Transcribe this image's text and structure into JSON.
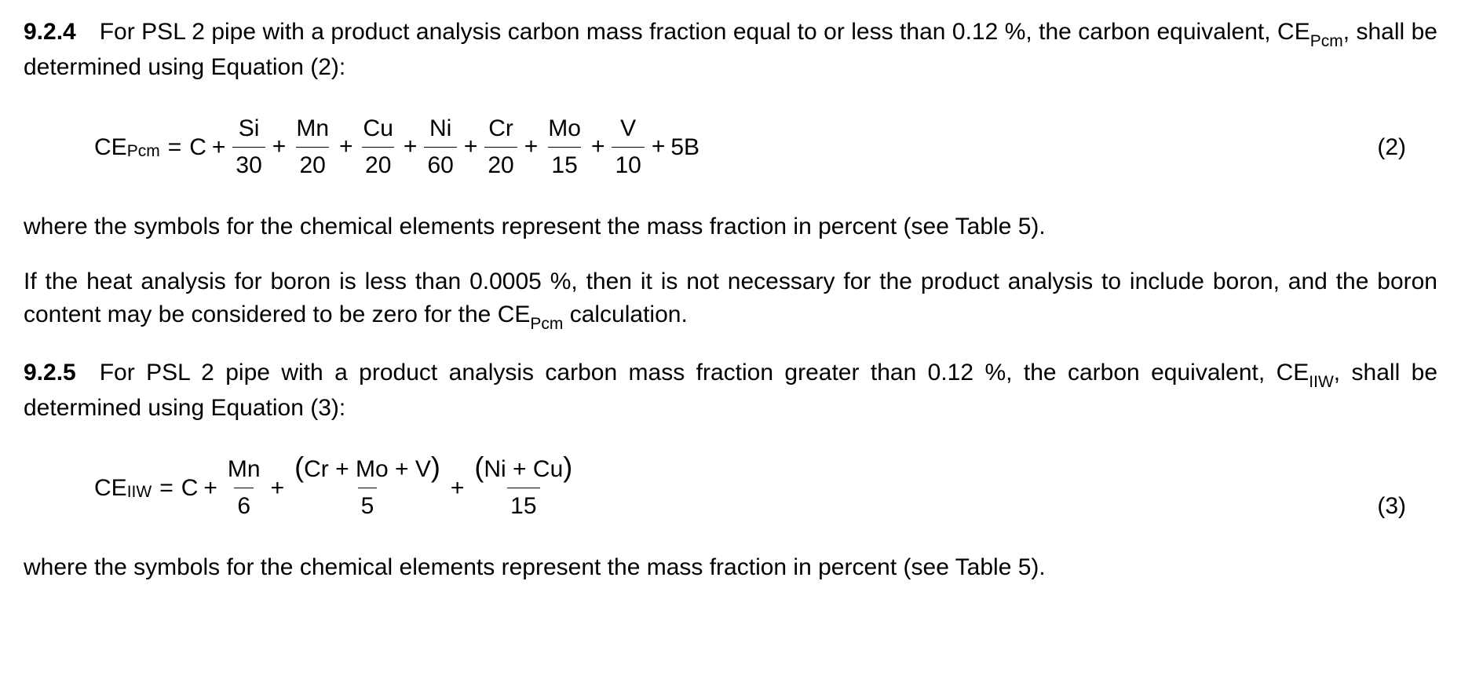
{
  "clause924": {
    "number": "9.2.4",
    "text_before_ce": "For PSL 2 pipe with a product analysis carbon mass fraction equal to or less than 0.12 %, the carbon equivalent, CE",
    "ce_sub": "Pcm",
    "text_after_ce": ", shall be determined using Equation (2):"
  },
  "eq2": {
    "lhs_main": "CE",
    "lhs_sub": "Pcm",
    "eq": "=",
    "first_term": "C",
    "plus": "+",
    "terms": [
      {
        "num": "Si",
        "den": "30"
      },
      {
        "num": "Mn",
        "den": "20"
      },
      {
        "num": "Cu",
        "den": "20"
      },
      {
        "num": "Ni",
        "den": "60"
      },
      {
        "num": "Cr",
        "den": "20"
      },
      {
        "num": "Mo",
        "den": "15"
      },
      {
        "num": "V",
        "den": "10"
      }
    ],
    "last_term": "5B",
    "number": "(2)"
  },
  "where_text": "where the symbols for the chemical elements represent the mass fraction in percent (see Table 5).",
  "boron_para": {
    "text_before_ce": "If the heat analysis for boron is less than 0.0005 %, then it is not necessary for the product analysis to include boron, and the boron content may be considered to be zero for the CE",
    "ce_sub": "Pcm",
    "text_after_ce": " calculation."
  },
  "clause925": {
    "number": "9.2.5",
    "text_before_ce": "For PSL 2 pipe with a product analysis carbon mass fraction greater than 0.12 %, the carbon equivalent, CE",
    "ce_sub": "IIW",
    "text_after_ce": ", shall be determined using Equation (3):"
  },
  "eq3": {
    "lhs_main": "CE",
    "lhs_sub": "IIW",
    "eq": "=",
    "first_term": "C",
    "plus": "+",
    "frac1": {
      "num": "Mn",
      "den": "6"
    },
    "frac2": {
      "num_open": "(",
      "num_inner": "Cr + Mo + V",
      "num_close": ")",
      "den": "5"
    },
    "frac3": {
      "num_open": "(",
      "num_inner": "Ni + Cu",
      "num_close": ")",
      "den": "15"
    },
    "number": "(3)"
  },
  "where_text2": "where the symbols for the chemical elements represent the mass fraction in percent (see Table 5)."
}
